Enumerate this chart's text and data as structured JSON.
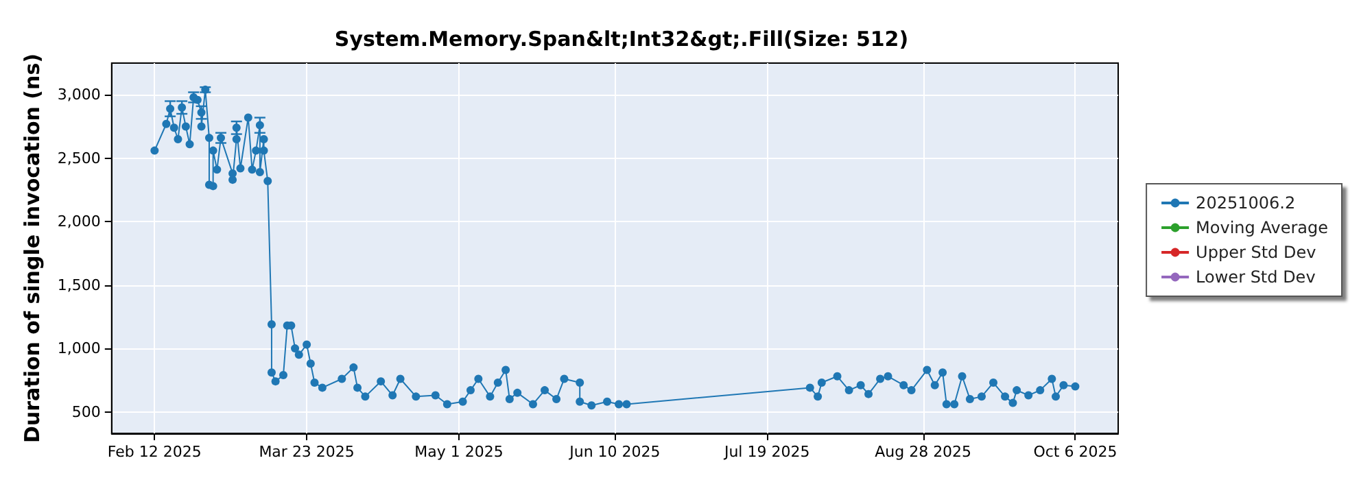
{
  "chart_data": {
    "type": "line",
    "title": "System.Memory.Span&lt;Int32&gt;.Fill(Size: 512)",
    "ylabel": "Duration of single invocation (ns)",
    "xlim": [
      "2025-02-01",
      "2025-10-17"
    ],
    "xticks": [
      {
        "value": "2025-02-12",
        "label": "Feb 12 2025"
      },
      {
        "value": "2025-03-23",
        "label": "Mar 23 2025"
      },
      {
        "value": "2025-05-01",
        "label": "May 1 2025"
      },
      {
        "value": "2025-06-10",
        "label": "Jun 10 2025"
      },
      {
        "value": "2025-07-19",
        "label": "Jul 19 2025"
      },
      {
        "value": "2025-08-28",
        "label": "Aug 28 2025"
      },
      {
        "value": "2025-10-06",
        "label": "Oct 6 2025"
      }
    ],
    "ylim": [
      330,
      3250
    ],
    "yticks": [
      500,
      {
        "value": 1000,
        "label": "1,000"
      },
      {
        "value": 1500,
        "label": "1,500"
      },
      {
        "value": 2000,
        "label": "2,000"
      },
      {
        "value": 2500,
        "label": "2,500"
      },
      {
        "value": 3000,
        "label": "3,000"
      }
    ],
    "grid": true,
    "legend": "right",
    "marker": "circle",
    "series": [
      {
        "name": "20251006.2",
        "color": "#1f77b4",
        "x": [
          "2025-02-12",
          "2025-02-15",
          "2025-02-16",
          "2025-02-17",
          "2025-02-18",
          "2025-02-19",
          "2025-02-20",
          "2025-02-21",
          "2025-02-22",
          "2025-02-23",
          "2025-02-24",
          "2025-02-24",
          "2025-02-25",
          "2025-02-26",
          "2025-02-26",
          "2025-02-27",
          "2025-02-27",
          "2025-02-28",
          "2025-03-01",
          "2025-03-04",
          "2025-03-04",
          "2025-03-05",
          "2025-03-05",
          "2025-03-06",
          "2025-03-08",
          "2025-03-09",
          "2025-03-10",
          "2025-03-11",
          "2025-03-11",
          "2025-03-12",
          "2025-03-12",
          "2025-03-13",
          "2025-03-14",
          "2025-03-14",
          "2025-03-15",
          "2025-03-17",
          "2025-03-18",
          "2025-03-19",
          "2025-03-20",
          "2025-03-21",
          "2025-03-23",
          "2025-03-24",
          "2025-03-25",
          "2025-03-27",
          "2025-04-01",
          "2025-04-04",
          "2025-04-05",
          "2025-04-07",
          "2025-04-11",
          "2025-04-14",
          "2025-04-16",
          "2025-04-20",
          "2025-04-25",
          "2025-04-28",
          "2025-05-02",
          "2025-05-04",
          "2025-05-06",
          "2025-05-09",
          "2025-05-11",
          "2025-05-13",
          "2025-05-14",
          "2025-05-16",
          "2025-05-20",
          "2025-05-23",
          "2025-05-26",
          "2025-05-28",
          "2025-06-01",
          "2025-06-01",
          "2025-06-04",
          "2025-06-08",
          "2025-06-11",
          "2025-06-13",
          "2025-07-30",
          "2025-08-01",
          "2025-08-02",
          "2025-08-06",
          "2025-08-09",
          "2025-08-12",
          "2025-08-14",
          "2025-08-17",
          "2025-08-19",
          "2025-08-23",
          "2025-08-25",
          "2025-08-29",
          "2025-08-31",
          "2025-09-02",
          "2025-09-03",
          "2025-09-05",
          "2025-09-07",
          "2025-09-09",
          "2025-09-12",
          "2025-09-15",
          "2025-09-18",
          "2025-09-20",
          "2025-09-21",
          "2025-09-24",
          "2025-09-27",
          "2025-09-30",
          "2025-10-01",
          "2025-10-03",
          "2025-10-06"
        ],
        "values": [
          2560,
          2770,
          2890,
          2740,
          2650,
          2900,
          2750,
          2610,
          2980,
          2960,
          2860,
          2750,
          3040,
          2660,
          2290,
          2280,
          2560,
          2410,
          2660,
          2380,
          2330,
          2650,
          2740,
          2420,
          2820,
          2410,
          2560,
          2760,
          2390,
          2650,
          2560,
          2320,
          1190,
          810,
          740,
          790,
          1180,
          1180,
          1000,
          950,
          1030,
          880,
          730,
          690,
          760,
          850,
          690,
          620,
          740,
          630,
          760,
          620,
          630,
          560,
          580,
          670,
          760,
          620,
          730,
          830,
          600,
          650,
          560,
          670,
          600,
          760,
          730,
          580,
          550,
          580,
          560,
          560,
          690,
          620,
          730,
          780,
          670,
          710,
          640,
          760,
          780,
          710,
          670,
          830,
          710,
          810,
          560,
          560,
          780,
          600,
          620,
          730,
          620,
          570,
          670,
          630,
          670,
          760,
          620,
          710,
          700
        ],
        "errors": [
          null,
          null,
          60,
          null,
          null,
          50,
          null,
          null,
          40,
          null,
          50,
          null,
          20,
          null,
          null,
          null,
          null,
          null,
          40,
          null,
          null,
          null,
          50,
          null,
          null,
          null,
          null,
          60,
          null,
          null,
          null,
          null,
          null,
          null,
          null,
          null,
          null,
          null,
          null,
          null,
          null,
          null,
          null,
          null,
          null,
          null,
          null,
          null,
          null,
          null,
          null,
          null,
          null,
          null,
          null,
          null,
          null,
          null,
          null,
          null,
          null,
          null,
          null,
          null,
          null,
          null,
          null,
          null,
          null,
          null,
          null,
          null,
          null,
          null,
          null,
          null,
          null,
          null,
          null,
          null,
          null,
          null,
          null,
          null,
          null,
          null,
          null,
          null,
          null,
          null,
          null,
          null,
          null,
          null,
          null,
          null,
          null,
          null,
          null,
          null,
          null
        ]
      },
      {
        "name": "Moving Average",
        "color": "#2ca02c"
      },
      {
        "name": "Upper Std Dev",
        "color": "#d62728"
      },
      {
        "name": "Lower Std Dev",
        "color": "#9467bd"
      }
    ]
  }
}
